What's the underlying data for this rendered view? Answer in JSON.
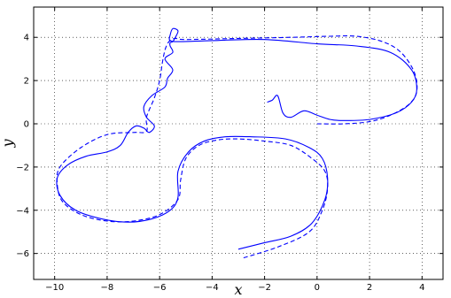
{
  "chart_data": {
    "type": "line",
    "title": "",
    "xlabel": "x",
    "ylabel": "y",
    "xlim": [
      -10.8,
      4.8
    ],
    "ylim": [
      -7.2,
      5.4
    ],
    "xticks": [
      -10,
      -8,
      -6,
      -4,
      -2,
      0,
      2,
      4
    ],
    "yticks": [
      -6,
      -4,
      -2,
      0,
      2,
      4
    ],
    "xtick_labels": [
      "−10",
      "−8",
      "−6",
      "−4",
      "−2",
      "0",
      "2",
      "4"
    ],
    "ytick_labels": [
      "−6",
      "−4",
      "−2",
      "0",
      "2",
      "4"
    ],
    "grid": true,
    "line_color": "#0000ff",
    "series": [
      {
        "style": "solid",
        "x": [
          -3.0,
          -2.0,
          -1.0,
          -0.2,
          0.3,
          0.4,
          0.2,
          -0.3,
          -1.2,
          -2.5,
          -3.5,
          -4.3,
          -4.9,
          -5.3,
          -5.3,
          -5.6,
          -6.3,
          -7.2,
          -8.2,
          -9.2,
          -9.8,
          -9.9,
          -9.5,
          -8.8,
          -8.0,
          -7.5,
          -7.2,
          -6.9,
          -6.6,
          -6.4,
          -6.2,
          -6.5,
          -6.6,
          -6.3,
          -5.8,
          -5.7,
          -5.5,
          -5.8,
          -5.5,
          -5.6,
          -5.6,
          -5.5,
          -5.4,
          -5.3,
          -5.5,
          -5.6,
          -5.6,
          -5.2,
          -4.0,
          -2.0,
          0.0,
          1.5,
          2.8,
          3.6,
          3.8,
          3.6,
          3.0,
          2.0,
          1.0,
          0.5,
          0.0,
          -0.5,
          -1.0,
          -1.3,
          -1.5,
          -1.7,
          -1.9
        ],
        "y": [
          -5.8,
          -5.5,
          -5.2,
          -4.6,
          -3.5,
          -2.5,
          -1.6,
          -1.1,
          -0.7,
          -0.6,
          -0.6,
          -0.8,
          -1.3,
          -2.2,
          -3.4,
          -4.0,
          -4.4,
          -4.55,
          -4.4,
          -4.0,
          -3.3,
          -2.5,
          -1.9,
          -1.5,
          -1.3,
          -1.0,
          -0.4,
          -0.1,
          -0.2,
          -0.4,
          -0.1,
          0.3,
          0.8,
          1.3,
          1.7,
          2.1,
          2.5,
          3.0,
          3.3,
          3.6,
          3.75,
          3.8,
          4.0,
          4.3,
          4.4,
          4.1,
          3.85,
          3.8,
          3.85,
          3.9,
          3.7,
          3.6,
          3.3,
          2.5,
          1.6,
          1.0,
          0.5,
          0.2,
          0.15,
          0.2,
          0.4,
          0.6,
          0.3,
          0.5,
          1.3,
          1.1,
          1.0
        ]
      },
      {
        "style": "dashed",
        "x": [
          -2.8,
          -1.5,
          -0.3,
          0.2,
          0.4,
          0.3,
          -0.2,
          -1.0,
          -2.0,
          -3.0,
          -3.8,
          -4.5,
          -5.0,
          -5.2,
          -5.3,
          -6.0,
          -7.0,
          -8.0,
          -9.0,
          -9.7,
          -9.9,
          -9.8,
          -9.0,
          -8.0,
          -7.0,
          -6.5,
          -6.5,
          -6.2,
          -6.0,
          -5.9,
          -5.8,
          -5.7,
          -5.6,
          -5.4,
          -5.0,
          -3.0,
          -1.0,
          0.5,
          1.5,
          2.5,
          3.2,
          3.7,
          3.8,
          3.5,
          2.8,
          2.0,
          1.0,
          0.0
        ],
        "y": [
          -6.2,
          -5.7,
          -5.0,
          -4.0,
          -3.0,
          -2.2,
          -1.6,
          -1.0,
          -0.8,
          -0.7,
          -0.75,
          -1.0,
          -1.6,
          -2.6,
          -3.5,
          -4.2,
          -4.5,
          -4.5,
          -4.2,
          -3.6,
          -2.8,
          -2.0,
          -1.1,
          -0.5,
          -0.4,
          -0.35,
          0.3,
          1.2,
          2.0,
          2.8,
          3.4,
          3.7,
          3.85,
          3.95,
          3.9,
          3.95,
          4.0,
          4.05,
          4.05,
          3.8,
          3.3,
          2.4,
          1.5,
          0.9,
          0.4,
          0.1,
          0.0,
          0.0
        ]
      }
    ]
  }
}
